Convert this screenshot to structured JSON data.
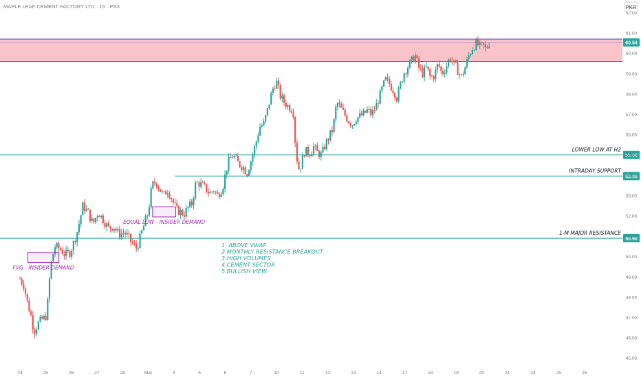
{
  "header": {
    "title": "MAPLE LEAF CEMENT FACTORY LTD · 15 · PSX",
    "currency": "PKR"
  },
  "colors": {
    "up": "#26a69a",
    "down": "#ef5350",
    "level_line": "#26a69a",
    "zone_fill": "#f8c4c9",
    "zone_border": "#7e57c2",
    "box_border": "#9c27b0",
    "note_text": "#26a69a",
    "axis_text": "#787b86"
  },
  "chart_data": {
    "type": "candlestick",
    "timeframe": "15",
    "y_axis": {
      "min": 45,
      "max": 62,
      "ticks": [
        "62.00",
        "61.00",
        "60.00",
        "59.00",
        "58.00",
        "57.00",
        "56.00",
        "55.00",
        "54.00",
        "53.00",
        "52.00",
        "51.00",
        "50.00",
        "49.00",
        "48.00",
        "47.00",
        "46.00",
        "45.00"
      ]
    },
    "x_axis": {
      "ticks": [
        {
          "label": "24",
          "pos": 0
        },
        {
          "label": "25",
          "pos": 1
        },
        {
          "label": "26",
          "pos": 2
        },
        {
          "label": "27",
          "pos": 3
        },
        {
          "label": "28",
          "pos": 4
        },
        {
          "label": "Mar",
          "pos": 5
        },
        {
          "label": "4",
          "pos": 6
        },
        {
          "label": "5",
          "pos": 7
        },
        {
          "label": "6",
          "pos": 8
        },
        {
          "label": "7",
          "pos": 9
        },
        {
          "label": "10",
          "pos": 10
        },
        {
          "label": "11",
          "pos": 11
        },
        {
          "label": "12",
          "pos": 12
        },
        {
          "label": "13",
          "pos": 13
        },
        {
          "label": "14",
          "pos": 14
        },
        {
          "label": "17",
          "pos": 15
        },
        {
          "label": "18",
          "pos": 16
        },
        {
          "label": "19",
          "pos": 17
        },
        {
          "label": "20",
          "pos": 18
        },
        {
          "label": "21",
          "pos": 19
        },
        {
          "label": "24",
          "pos": 20
        },
        {
          "label": "25",
          "pos": 21
        },
        {
          "label": "26",
          "pos": 22
        }
      ]
    },
    "close_path": [
      [
        0.0,
        48.9
      ],
      [
        0.15,
        48.6
      ],
      [
        0.3,
        47.7
      ],
      [
        0.45,
        47.0
      ],
      [
        0.55,
        46.3
      ],
      [
        0.7,
        46.7
      ],
      [
        0.85,
        46.9
      ],
      [
        1.0,
        47.0
      ],
      [
        1.1,
        47.9
      ],
      [
        1.18,
        49.4
      ],
      [
        1.35,
        50.5
      ],
      [
        1.55,
        50.4
      ],
      [
        1.75,
        50.1
      ],
      [
        1.95,
        50.2
      ],
      [
        2.1,
        50.7
      ],
      [
        2.25,
        51.3
      ],
      [
        2.45,
        52.5
      ],
      [
        2.65,
        52.2
      ],
      [
        2.85,
        51.6
      ],
      [
        3.05,
        52.2
      ],
      [
        3.25,
        51.8
      ],
      [
        3.45,
        51.4
      ],
      [
        3.65,
        51.5
      ],
      [
        3.85,
        51.1
      ],
      [
        4.05,
        51.2
      ],
      [
        4.2,
        51.0
      ],
      [
        4.4,
        50.6
      ],
      [
        4.55,
        50.4
      ],
      [
        4.75,
        51.2
      ],
      [
        4.9,
        51.8
      ],
      [
        5.0,
        52.2
      ],
      [
        5.15,
        53.5
      ],
      [
        5.3,
        53.7
      ],
      [
        5.45,
        53.3
      ],
      [
        5.6,
        53.0
      ],
      [
        5.75,
        53.3
      ],
      [
        5.9,
        52.9
      ],
      [
        6.0,
        52.6
      ],
      [
        6.1,
        52.3
      ],
      [
        6.25,
        52.2
      ],
      [
        6.4,
        52.1
      ],
      [
        6.55,
        52.4
      ],
      [
        6.7,
        52.6
      ],
      [
        6.85,
        53.6
      ],
      [
        7.0,
        53.6
      ],
      [
        7.2,
        53.4
      ],
      [
        7.4,
        53.1
      ],
      [
        7.55,
        53.3
      ],
      [
        7.7,
        53.0
      ],
      [
        7.9,
        53.4
      ],
      [
        8.1,
        54.6
      ],
      [
        8.3,
        55.0
      ],
      [
        8.5,
        54.6
      ],
      [
        8.7,
        54.4
      ],
      [
        8.85,
        54.1
      ],
      [
        9.0,
        54.7
      ],
      [
        9.2,
        55.6
      ],
      [
        9.35,
        56.4
      ],
      [
        9.5,
        56.5
      ],
      [
        9.65,
        57.2
      ],
      [
        9.8,
        58.0
      ],
      [
        9.9,
        58.4
      ],
      [
        10.0,
        58.6
      ],
      [
        10.15,
        57.9
      ],
      [
        10.3,
        57.6
      ],
      [
        10.45,
        57.4
      ],
      [
        10.65,
        57.2
      ],
      [
        10.75,
        55.3
      ],
      [
        10.85,
        54.3
      ],
      [
        10.95,
        54.5
      ],
      [
        11.1,
        55.2
      ],
      [
        11.3,
        55.1
      ],
      [
        11.45,
        55.4
      ],
      [
        11.6,
        55.1
      ],
      [
        11.75,
        55.0
      ],
      [
        11.9,
        55.5
      ],
      [
        12.05,
        55.9
      ],
      [
        12.2,
        56.3
      ],
      [
        12.35,
        57.6
      ],
      [
        12.5,
        57.3
      ],
      [
        12.65,
        57.0
      ],
      [
        12.8,
        56.7
      ],
      [
        12.95,
        56.5
      ],
      [
        13.1,
        56.8
      ],
      [
        13.25,
        56.9
      ],
      [
        13.4,
        57.0
      ],
      [
        13.55,
        57.2
      ],
      [
        13.7,
        57.0
      ],
      [
        13.85,
        57.3
      ],
      [
        14.0,
        57.8
      ],
      [
        14.1,
        58.2
      ],
      [
        14.25,
        58.7
      ],
      [
        14.4,
        58.5
      ],
      [
        14.55,
        58.2
      ],
      [
        14.7,
        57.8
      ],
      [
        14.8,
        58.3
      ],
      [
        14.95,
        59.0
      ],
      [
        15.1,
        59.3
      ],
      [
        15.25,
        59.6
      ],
      [
        15.4,
        59.9
      ],
      [
        15.55,
        59.3
      ],
      [
        15.7,
        59.0
      ],
      [
        15.85,
        59.3
      ],
      [
        16.0,
        58.8
      ],
      [
        16.15,
        58.9
      ],
      [
        16.3,
        59.5
      ],
      [
        16.45,
        59.0
      ],
      [
        16.6,
        59.3
      ],
      [
        16.75,
        59.8
      ],
      [
        16.9,
        59.5
      ],
      [
        17.05,
        59.2
      ],
      [
        17.2,
        58.8
      ],
      [
        17.35,
        59.3
      ],
      [
        17.5,
        59.9
      ],
      [
        17.65,
        60.3
      ],
      [
        17.8,
        60.5
      ],
      [
        17.95,
        60.3
      ],
      [
        18.05,
        60.4
      ],
      [
        18.15,
        60.2
      ],
      [
        18.3,
        60.54
      ]
    ],
    "lines": [
      {
        "value": 55.0,
        "label": "LOWER LOW AT H2",
        "price_label": "55.00",
        "from": 0
      },
      {
        "value": 53.96,
        "label": "INTRADAY SUPPORT",
        "price_label": "53.96",
        "from": 6.05
      },
      {
        "value": 50.9,
        "label": "1-M MAJOR RESISTANCE",
        "price_label": "50.90",
        "from": 0
      }
    ],
    "zone": {
      "from_value": 59.6,
      "to_value": 60.7,
      "price_label": "60.54"
    },
    "boxes": [
      {
        "label": "FVG - INSIDER DEMAND",
        "x0": 1.14,
        "x1": 2.35,
        "y_top": 50.2,
        "y_bottom": 49.7
      },
      {
        "label": "EQUAL LOW - INSIDER DEMAND",
        "x0": 6.0,
        "x1": 6.9,
        "y_top": 52.45,
        "y_bottom": 51.95
      }
    ],
    "notes": [
      "1.  ABOVE VWAP",
      "2.MONTHLY RESISTANCE BREAKOUT",
      "3.HIGH VOLUMES",
      "4.CEMENT SECTOR",
      "5.BULLISH VIEW"
    ]
  }
}
